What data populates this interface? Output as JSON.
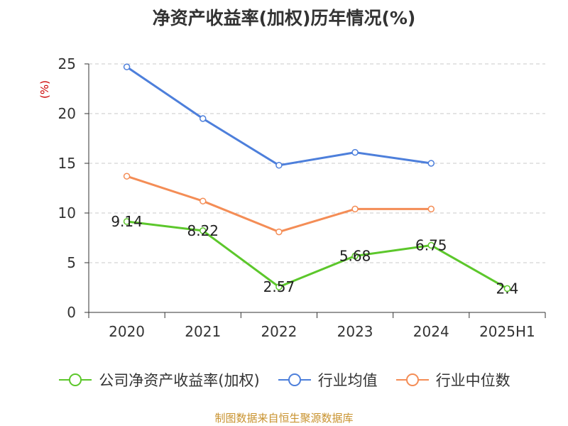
{
  "title": "净资产收益率(加权)历年情况(%)",
  "source": "制图数据来自恒生聚源数据库",
  "chart_data": {
    "type": "line",
    "ylabel": "(%)",
    "ylim": [
      0,
      25
    ],
    "yticks": [
      0,
      5,
      10,
      15,
      20,
      25
    ],
    "grid": true,
    "legend_position": "bottom",
    "categories": [
      "2020",
      "2021",
      "2022",
      "2023",
      "2024",
      "2025H1"
    ],
    "series": [
      {
        "name": "公司净资产收益率(加权)",
        "color": "#5cc72b",
        "values": [
          9.14,
          8.22,
          2.57,
          5.68,
          6.75,
          2.4
        ],
        "labels": [
          "9.14",
          "8.22",
          "2.57",
          "5.68",
          "6.75",
          "2.4"
        ]
      },
      {
        "name": "行业均值",
        "color": "#4d7fdb",
        "values": [
          24.7,
          19.5,
          14.8,
          16.1,
          15.0,
          null
        ]
      },
      {
        "name": "行业中位数",
        "color": "#f48d56",
        "values": [
          13.7,
          11.2,
          8.1,
          10.4,
          10.4,
          null
        ]
      }
    ]
  }
}
